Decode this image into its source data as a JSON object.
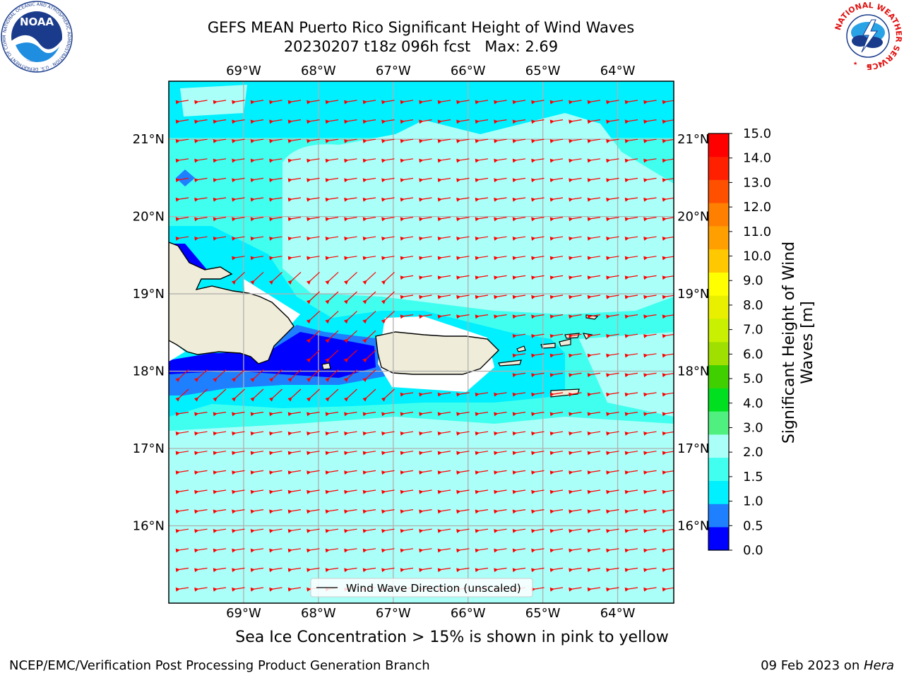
{
  "title": {
    "line1": "GEFS MEAN Puerto Rico Significant Height of Wind Waves",
    "line2": "20230207 t18z 096h fcst   Max: 2.69"
  },
  "map": {
    "lon_ticks": [
      "69°W",
      "68°W",
      "67°W",
      "66°W",
      "65°W",
      "64°W"
    ],
    "lat_ticks": [
      "21°N",
      "20°N",
      "19°N",
      "18°N",
      "17°N",
      "16°N"
    ],
    "lon_values": [
      -69,
      -68,
      -67,
      -66,
      -65,
      -64
    ],
    "lat_values": [
      21,
      20,
      19,
      18,
      17,
      16
    ],
    "lon_range": [
      -70,
      -63.25
    ],
    "lat_range": [
      15.0,
      21.75
    ],
    "max_value": 2.69,
    "wind_wave_direction": "westward",
    "legend_label": "Wind Wave Direction (unscaled)",
    "legend_position": "bottom-center"
  },
  "colorbar": {
    "label": "Significant Height of Wind Waves [m]",
    "ticks": [
      "0.0",
      "0.5",
      "1.0",
      "1.5",
      "2.0",
      "3.0",
      "4.0",
      "5.0",
      "6.0",
      "7.0",
      "8.0",
      "9.0",
      "10.0",
      "11.0",
      "12.0",
      "13.0",
      "14.0",
      "15.0"
    ],
    "colors": [
      "#0000ff",
      "#1e7fff",
      "#00f0ff",
      "#40ffef",
      "#aafff8",
      "#50f080",
      "#00e020",
      "#40d000",
      "#a0e000",
      "#c8f000",
      "#e8f000",
      "#ffff00",
      "#ffc800",
      "#ffa000",
      "#ff8000",
      "#ff5000",
      "#ff2000",
      "#ff0000"
    ]
  },
  "caption": "Sea Ice Concentration > 15% is shown in pink to yellow",
  "footer": {
    "left": "NCEP/EMC/Verification Post Processing Product Generation Branch",
    "right_prefix": "09 Feb 2023 on ",
    "right_host": "Hera"
  },
  "logos": {
    "left": "NOAA",
    "left_ring": "NATIONAL OCEANIC AND ATMOSPHERIC ADMINISTRATION · U.S. DEPARTMENT OF COMMERCE",
    "right": "NATIONAL WEATHER SERVICE"
  }
}
